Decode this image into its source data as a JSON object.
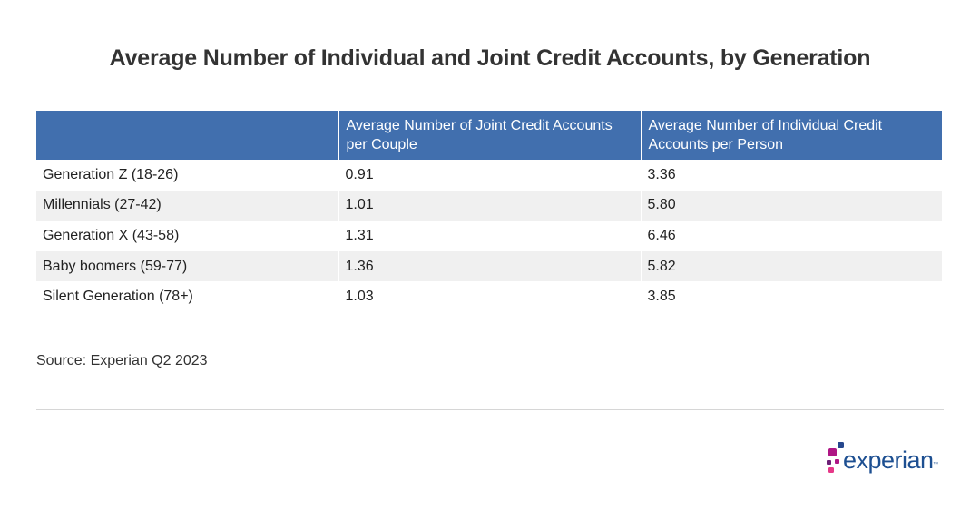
{
  "chart_data": {
    "type": "table",
    "title": "Average Number of Individual and Joint Credit Accounts, by Generation",
    "columns": [
      "",
      "Average Number of Joint Credit Accounts per Couple",
      "Average Number of Individual Credit Accounts per Person"
    ],
    "rows": [
      [
        "Generation Z (18-26)",
        "0.91",
        "3.36"
      ],
      [
        "Millennials (27-42)",
        "1.01",
        "5.80"
      ],
      [
        "Generation X (43-58)",
        "1.31",
        "6.46"
      ],
      [
        "Baby boomers (59-77)",
        "1.36",
        "5.82"
      ],
      [
        "Silent Generation (78+)",
        "1.03",
        "3.85"
      ]
    ],
    "source": "Source: Experian Q2 2023"
  },
  "colors": {
    "header_bg": "#416fae",
    "stripe": "#f0f0f0",
    "logo_blue": "#1d4f91"
  },
  "logo": {
    "text": "experian",
    "mark": "™"
  }
}
